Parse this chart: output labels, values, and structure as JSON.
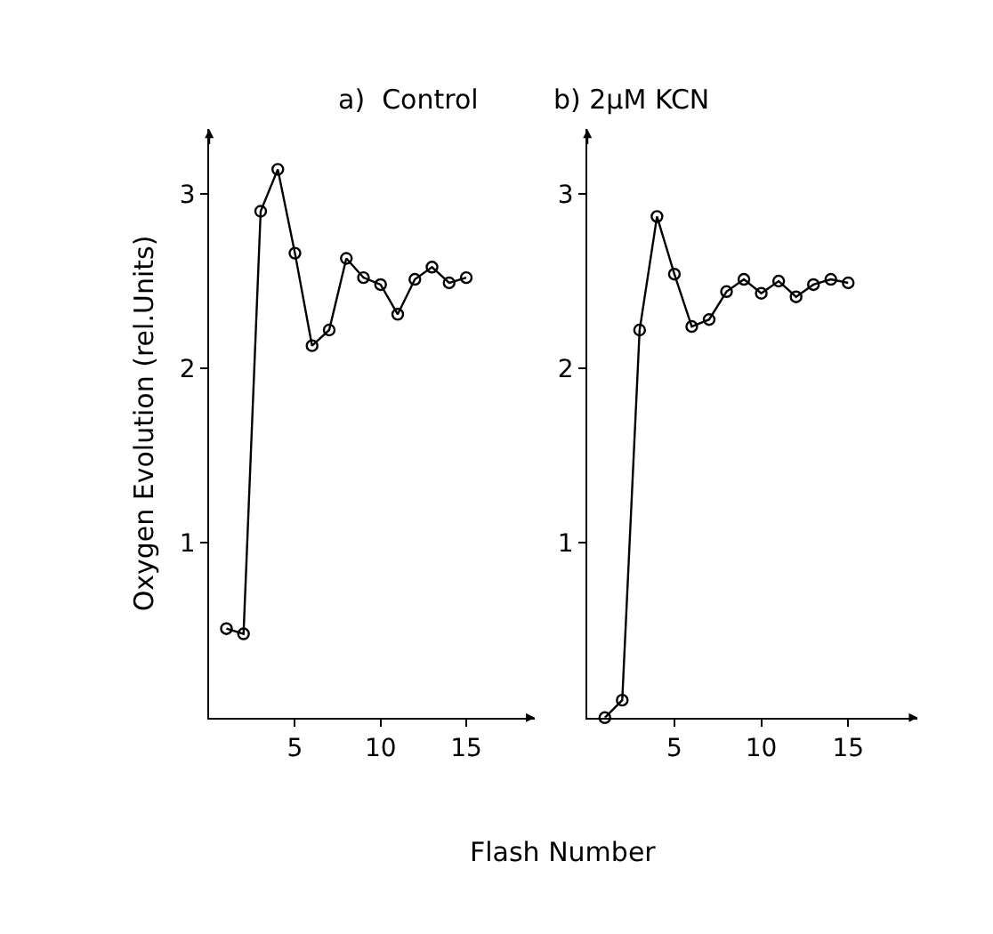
{
  "chart_data": [
    {
      "type": "line",
      "title": "a)  Control",
      "xlabel": "Flash Number",
      "ylabel": "Oxygen Evolution (rel.Units)",
      "marker": "circle",
      "color": "#000000",
      "x": [
        1,
        2,
        3,
        4,
        5,
        6,
        7,
        8,
        9,
        10,
        11,
        12,
        13,
        14,
        15
      ],
      "values": [
        0.51,
        0.48,
        2.9,
        3.14,
        2.66,
        2.13,
        2.22,
        2.63,
        2.52,
        2.48,
        2.31,
        2.51,
        2.58,
        2.49,
        2.52
      ],
      "xlim": [
        0,
        19
      ],
      "ylim": [
        0,
        3.37
      ],
      "xticks": [
        5,
        10,
        15
      ],
      "yticks": [
        1,
        2,
        3
      ]
    },
    {
      "type": "line",
      "title": "b) 2μM KCN",
      "marker": "circle",
      "color": "#000000",
      "x": [
        1,
        2,
        3,
        4,
        5,
        6,
        7,
        8,
        9,
        10,
        11,
        12,
        13,
        14,
        15
      ],
      "values": [
        0.0,
        0.1,
        2.22,
        2.87,
        2.54,
        2.24,
        2.28,
        2.44,
        2.51,
        2.43,
        2.5,
        2.41,
        2.48,
        2.51,
        2.49
      ],
      "xlim": [
        0,
        19
      ],
      "ylim": [
        0,
        3.37
      ],
      "xticks": [
        5,
        10,
        15
      ],
      "yticks": [
        1,
        2,
        3
      ]
    }
  ]
}
